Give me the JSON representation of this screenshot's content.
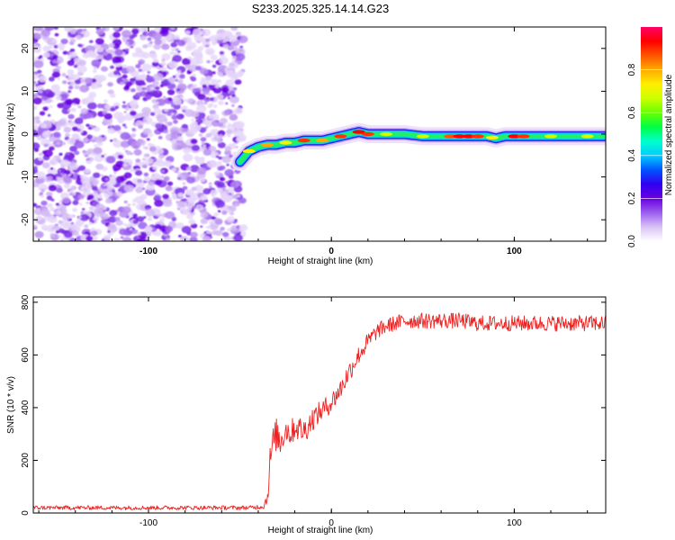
{
  "title": "S233.2025.325.14.14.G23",
  "chart_data": [
    {
      "type": "heatmap",
      "name": "spectrogram",
      "xlabel": "Height of straight line (km)",
      "ylabel": "Frequency (Hz)",
      "xlim": [
        -163,
        150
      ],
      "ylim": [
        -25,
        25
      ],
      "xticks": [
        -100,
        0,
        100
      ],
      "yticks": [
        -20,
        -10,
        0,
        10,
        20
      ],
      "noise_region_x": [
        -163,
        -50
      ],
      "ridge": {
        "x": [
          -50,
          -48,
          -45,
          -40,
          -35,
          -30,
          -25,
          -20,
          -15,
          -10,
          -5,
          0,
          5,
          10,
          15,
          20,
          30,
          40,
          50,
          60,
          70,
          80,
          85,
          90,
          95,
          100,
          110,
          120,
          130,
          140,
          150
        ],
        "freq": [
          -6.5,
          -5.5,
          -4,
          -3,
          -2.5,
          -2.5,
          -2,
          -2,
          -1.5,
          -1.5,
          -1.5,
          -1,
          -0.5,
          0,
          0.5,
          0,
          0,
          0,
          -0.5,
          -0.5,
          -0.5,
          -0.5,
          -0.5,
          -1,
          -0.5,
          -0.5,
          -0.5,
          -0.5,
          -0.5,
          -0.5,
          -0.5
        ]
      },
      "colorbar": {
        "label": "Normalized spectral amplitude",
        "range": [
          0,
          1
        ],
        "ticks": [
          "0.0",
          "0.2",
          "0.4",
          "0.6",
          "0.8"
        ],
        "tick_values": [
          0,
          0.2,
          0.4,
          0.6,
          0.8
        ],
        "colors": [
          "#ffffff",
          "#d9c2f5",
          "#9b5ff0",
          "#6a00e0",
          "#3000f0",
          "#0055ff",
          "#00ccff",
          "#00ffcc",
          "#00ff44",
          "#66ff00",
          "#ccff00",
          "#ffee00",
          "#ffaa00",
          "#ff5500",
          "#ff0000",
          "#ff0066"
        ]
      }
    },
    {
      "type": "line",
      "name": "snr",
      "xlabel": "Height of straight line (km)",
      "ylabel": "SNR (10 * v/v)",
      "xlim": [
        -163,
        150
      ],
      "ylim": [
        0,
        820
      ],
      "xticks": [
        -100,
        0,
        100
      ],
      "yticks": [
        0,
        200,
        400,
        600,
        800
      ],
      "color": "#ee2222",
      "series": [
        {
          "name": "SNR",
          "x": [
            -163,
            -140,
            -120,
            -100,
            -80,
            -60,
            -45,
            -37,
            -35,
            -34,
            -33,
            -32,
            -30,
            -28,
            -25,
            -22,
            -20,
            -15,
            -10,
            -5,
            0,
            5,
            10,
            15,
            20,
            25,
            30,
            40,
            50,
            60,
            70,
            80,
            90,
            100,
            110,
            120,
            130,
            140,
            150
          ],
          "values": [
            20,
            20,
            20,
            20,
            20,
            20,
            20,
            25,
            60,
            150,
            230,
            260,
            300,
            270,
            320,
            300,
            330,
            310,
            360,
            390,
            420,
            470,
            540,
            600,
            650,
            690,
            710,
            730,
            730,
            730,
            730,
            720,
            720,
            720,
            720,
            720,
            720,
            720,
            720
          ],
          "noise": [
            8,
            8,
            8,
            8,
            8,
            8,
            8,
            10,
            30,
            60,
            70,
            70,
            60,
            60,
            50,
            50,
            50,
            50,
            45,
            40,
            40,
            40,
            40,
            35,
            35,
            30,
            30,
            30,
            30,
            30,
            30,
            30,
            30,
            30,
            30,
            30,
            30,
            30,
            30
          ]
        }
      ]
    }
  ]
}
